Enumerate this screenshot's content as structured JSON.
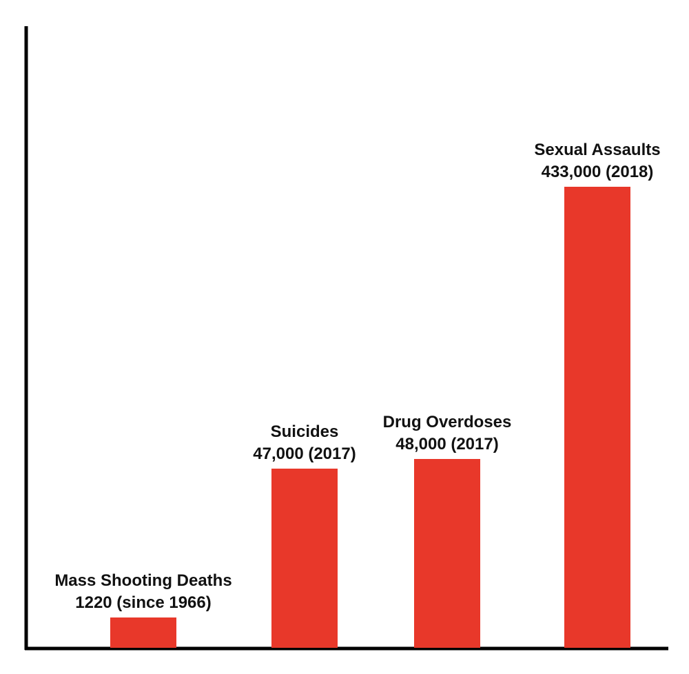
{
  "chart_data": {
    "type": "bar",
    "categories": [
      "Mass Shooting Deaths",
      "Suicides",
      "Drug Overdoses",
      "Sexual Assaults"
    ],
    "values": [
      1220,
      47000,
      48000,
      433000
    ],
    "data_labels": [
      "1220 (since 1966)",
      "47,000 (2017)",
      "48,000 (2017)",
      "433,000 (2018)"
    ],
    "title": "",
    "xlabel": "",
    "ylabel": "",
    "grid": false,
    "bar_color": "#e8382a",
    "axis_color": "#000000"
  }
}
